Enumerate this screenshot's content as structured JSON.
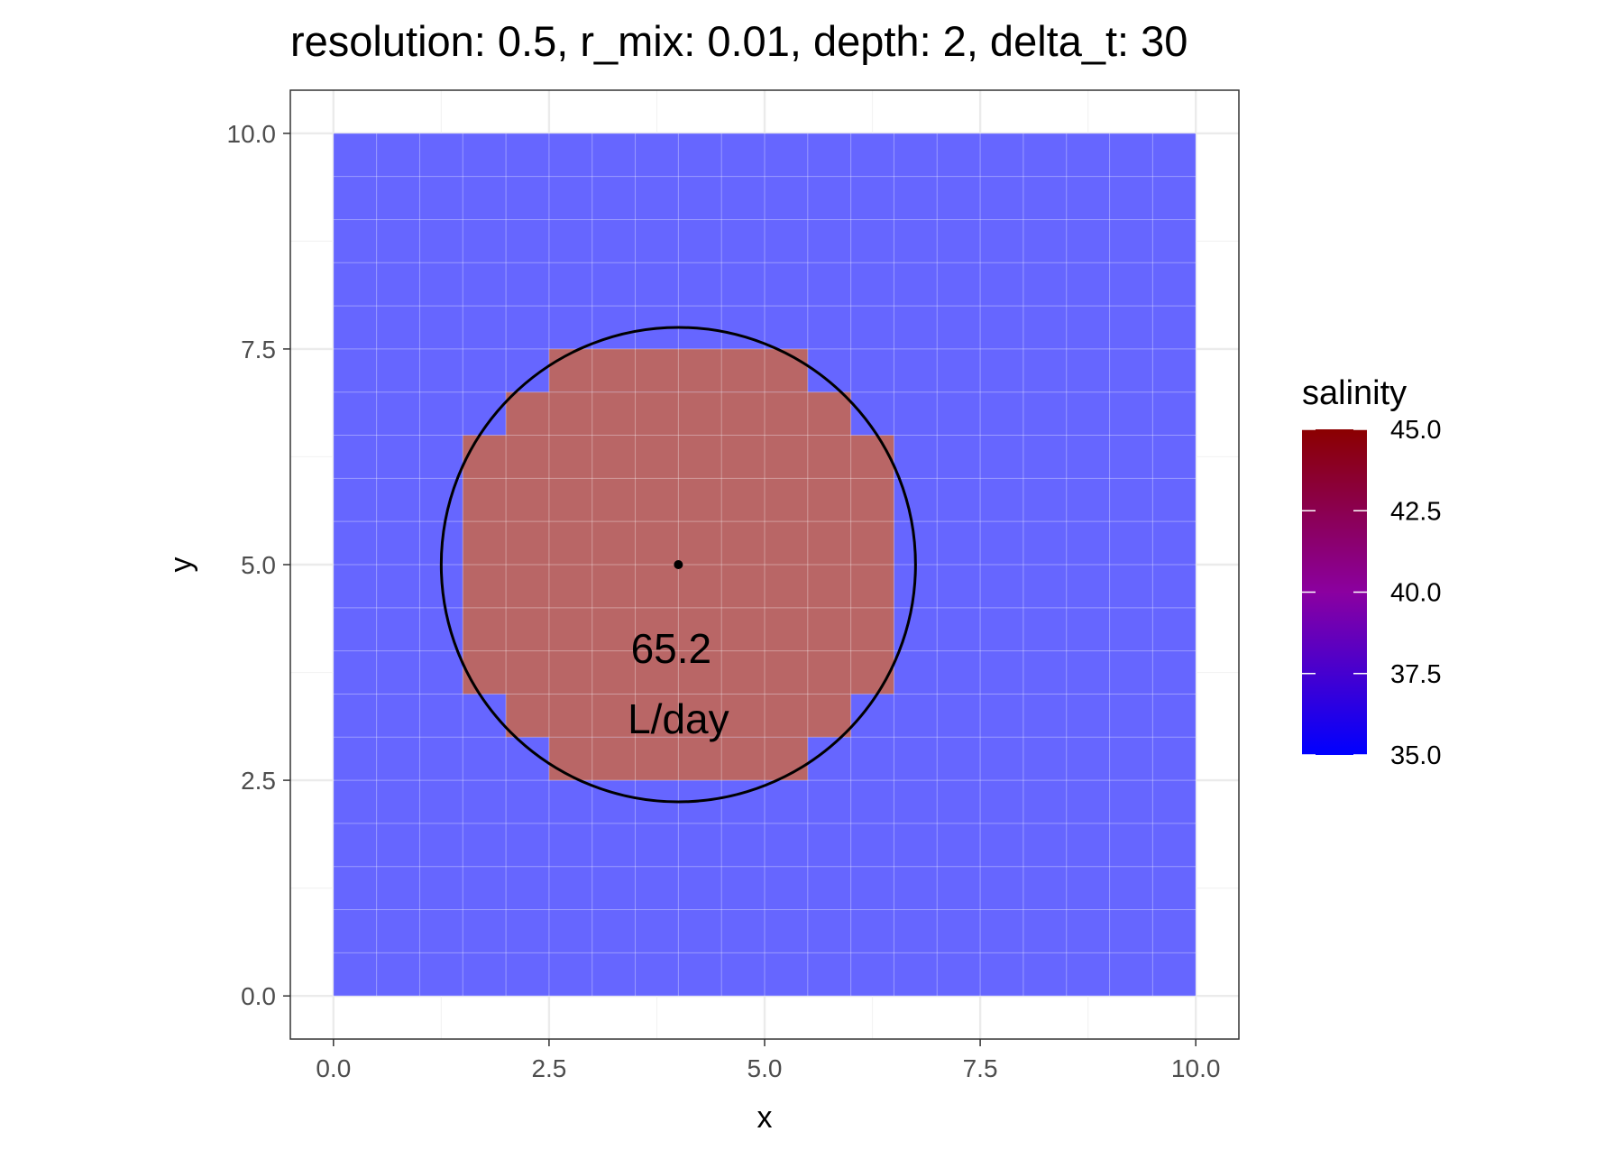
{
  "chart_data": {
    "type": "heatmap",
    "title": "resolution: 0.5, r_mix: 0.01, depth: 2, delta_t: 30",
    "xlabel": "x",
    "ylabel": "y",
    "xlim": [
      -0.5,
      10.5
    ],
    "ylim": [
      -0.5,
      10.5
    ],
    "x_ticks": [
      "0.0",
      "2.5",
      "5.0",
      "7.5",
      "10.0"
    ],
    "y_ticks": [
      "0.0",
      "2.5",
      "5.0",
      "7.5",
      "10.0"
    ],
    "x_tick_values": [
      0,
      2.5,
      5,
      7.5,
      10
    ],
    "y_tick_values": [
      0,
      2.5,
      5,
      7.5,
      10
    ],
    "grid": true,
    "cell_size": 0.5,
    "grid_extent": [
      0,
      10
    ],
    "background_value": 35.0,
    "high_value_region": {
      "value": 45.0,
      "rows": [
        {
          "y_range": [
            2.5,
            3.0
          ],
          "x_range": [
            2.5,
            5.5
          ]
        },
        {
          "y_range": [
            3.0,
            3.5
          ],
          "x_range": [
            2.0,
            6.0
          ]
        },
        {
          "y_range": [
            3.5,
            6.5
          ],
          "x_range": [
            1.5,
            6.5
          ]
        },
        {
          "y_range": [
            6.5,
            7.0
          ],
          "x_range": [
            2.0,
            6.0
          ]
        },
        {
          "y_range": [
            7.0,
            7.5
          ],
          "x_range": [
            2.5,
            5.5
          ]
        }
      ]
    },
    "circle": {
      "center": [
        4,
        5
      ],
      "radius": 2.75
    },
    "center_point": [
      4,
      5
    ],
    "annotation": {
      "line1": "65.2",
      "line2": "L/day",
      "position": [
        4,
        3.8
      ]
    },
    "legend": {
      "title": "salinity",
      "placement": "right",
      "min": 35.0,
      "max": 45.0,
      "labels": [
        "35.0",
        "37.5",
        "40.0",
        "42.5",
        "45.0"
      ],
      "values": [
        35,
        37.5,
        40,
        42.5,
        45
      ],
      "color_low": "#0000ff",
      "color_mid": "#8b00a0",
      "color_high": "#8b0000"
    },
    "fill_alpha": 0.6
  }
}
